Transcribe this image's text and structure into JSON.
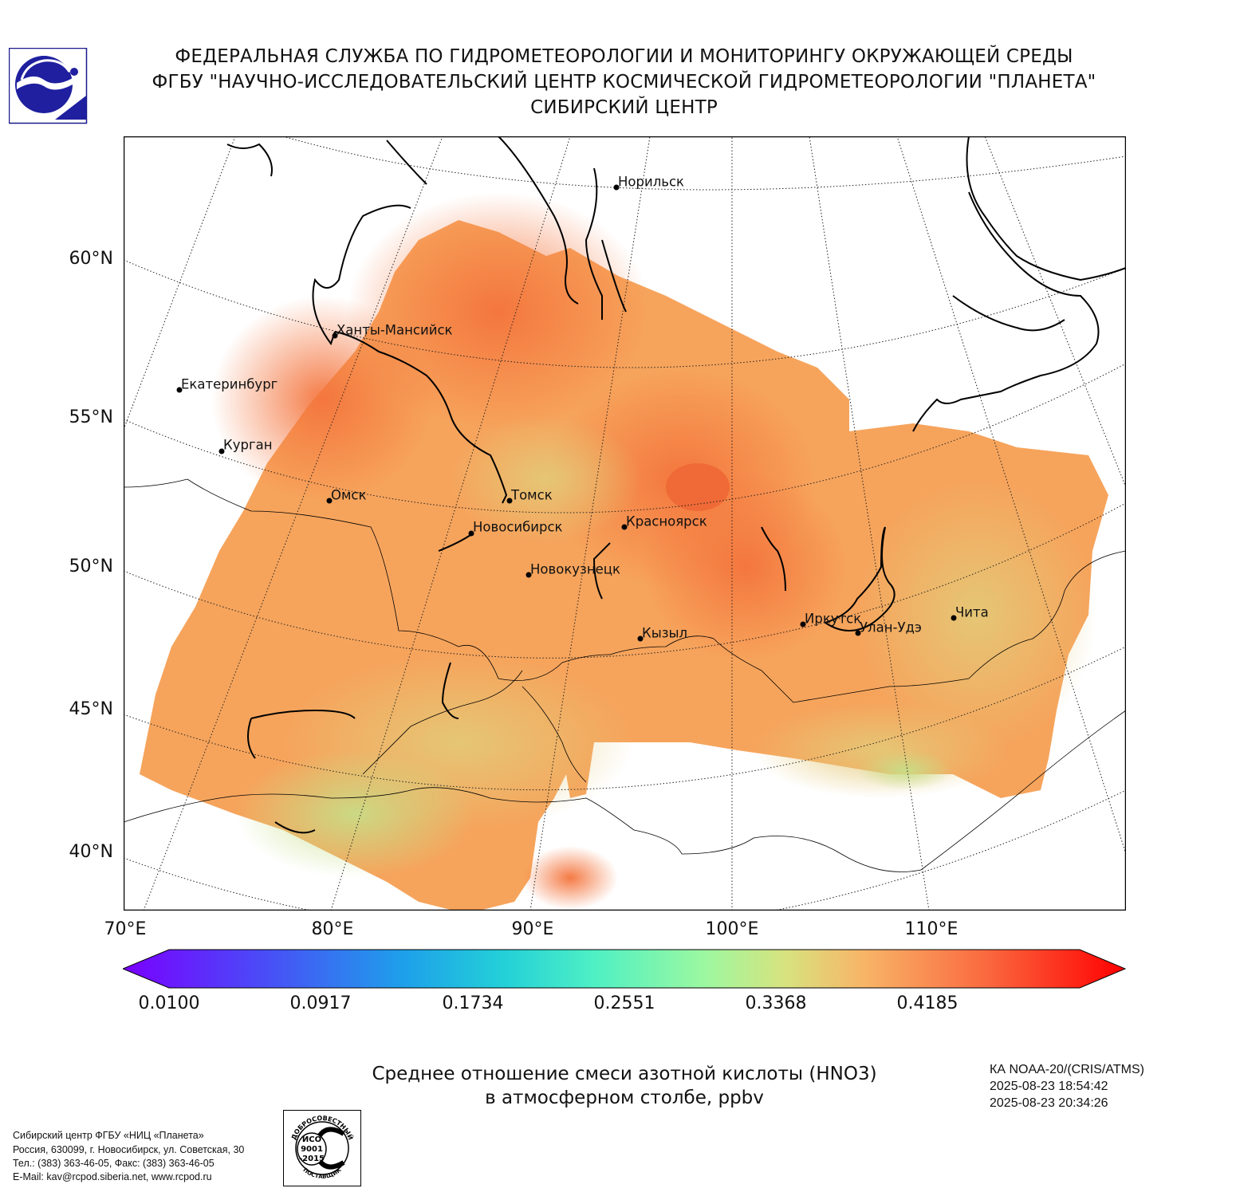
{
  "header": {
    "line1": "ФЕДЕРАЛЬНАЯ СЛУЖБА ПО ГИДРОМЕТЕОРОЛОГИИ И МОНИТОРИНГУ ОКРУЖАЮЩЕЙ СРЕДЫ",
    "line2": "ФГБУ \"НАУЧНО-ИССЛЕДОВАТЕЛЬСКИЙ ЦЕНТР КОСМИЧЕСКОЙ ГИДРОМЕТЕОРОЛОГИИ \"ПЛАНЕТА\"",
    "line3": "СИБИРСКИЙ ЦЕНТР",
    "logo_icon": "planeta-logo-icon"
  },
  "map": {
    "lat_labels": [
      "60°N",
      "55°N",
      "50°N",
      "45°N",
      "40°N"
    ],
    "lon_labels": [
      "70°E",
      "80°E",
      "90°E",
      "100°E",
      "110°E"
    ],
    "cities": [
      {
        "name": "Норильск"
      },
      {
        "name": "Ханты-Мансийск"
      },
      {
        "name": "Екатеринбург"
      },
      {
        "name": "Курган"
      },
      {
        "name": "Омск"
      },
      {
        "name": "Томск"
      },
      {
        "name": "Новосибирск"
      },
      {
        "name": "Красноярск"
      },
      {
        "name": "Новокузнецк"
      },
      {
        "name": "Кызыл"
      },
      {
        "name": "Иркутск"
      },
      {
        "name": "Улан-Удэ"
      },
      {
        "name": "Чита"
      }
    ],
    "field_colors": {
      "high": "#f4874a",
      "mid": "#f6a45c",
      "low": "#e0c877",
      "lowest": "#bfe08c"
    }
  },
  "colorbar": {
    "ticks": [
      "0.0100",
      "0.0917",
      "0.1734",
      "0.2551",
      "0.3368",
      "0.4185"
    ],
    "min_color": "#7a00ff",
    "max_color": "#ff0000"
  },
  "title": {
    "line1": "Среднее отношение смеси азотной кислоты (HNO3)",
    "line2": "в атмосферном столбе, ppbv"
  },
  "satellite": {
    "line1": "КА NOAA-20/(CRIS/ATMS)",
    "line2": "2025-08-23 18:54:42",
    "line3": "2025-08-23 20:34:26"
  },
  "footer": {
    "line1": "Сибирский центр ФГБУ «НИЦ «Планета»",
    "line2": "Россия, 630099, г. Новосибирск, ул. Советская, 30",
    "line3": "Тел.: (383) 363-46-05, Факс: (383) 363-46-05",
    "line4": "E-Mail: kav@rcpod.siberia.net, www.rcpod.ru"
  },
  "iso_badge": {
    "top_text": "ДОБРОСОВЕСТНЫЙ",
    "center_line1": "ИСО",
    "center_line2": "9001",
    "center_line3": "-2015",
    "bottom_text": "ПОСТАВЩИК"
  }
}
